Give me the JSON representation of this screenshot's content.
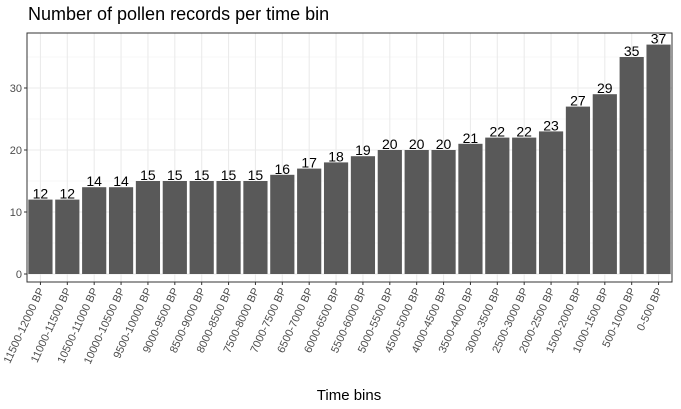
{
  "colors": {
    "bar": "#595959",
    "panel_border": "#333333",
    "grid_major": "#ebebeb",
    "grid_minor": "#f5f5f5",
    "tick_text": "#4d4d4d",
    "label_text": "#000000"
  },
  "chart_data": {
    "type": "bar",
    "title": "Number of pollen records per time bin",
    "xlabel": "Time bins",
    "ylabel": "",
    "ylim": [
      0,
      38
    ],
    "yticks": [
      0,
      10,
      20,
      30
    ],
    "grid": true,
    "legend": "none",
    "categories": [
      "11500-12000 BP",
      "11000-11500 BP",
      "10500-11000 BP",
      "10000-10500 BP",
      "9500-10000 BP",
      "9000-9500 BP",
      "8500-9000 BP",
      "8000-8500 BP",
      "7500-8000 BP",
      "7000-7500 BP",
      "6500-7000 BP",
      "6000-6500 BP",
      "5500-6000 BP",
      "5000-5500 BP",
      "4500-5000 BP",
      "4000-4500 BP",
      "3500-4000 BP",
      "3000-3500 BP",
      "2500-3000 BP",
      "2000-2500 BP",
      "1500-2000 BP",
      "1000-1500 BP",
      "500-1000 BP",
      "0-500 BP"
    ],
    "values": [
      12,
      12,
      14,
      14,
      15,
      15,
      15,
      15,
      15,
      16,
      17,
      18,
      19,
      20,
      20,
      20,
      21,
      22,
      22,
      23,
      27,
      29,
      35,
      37
    ],
    "data_labels": true
  }
}
